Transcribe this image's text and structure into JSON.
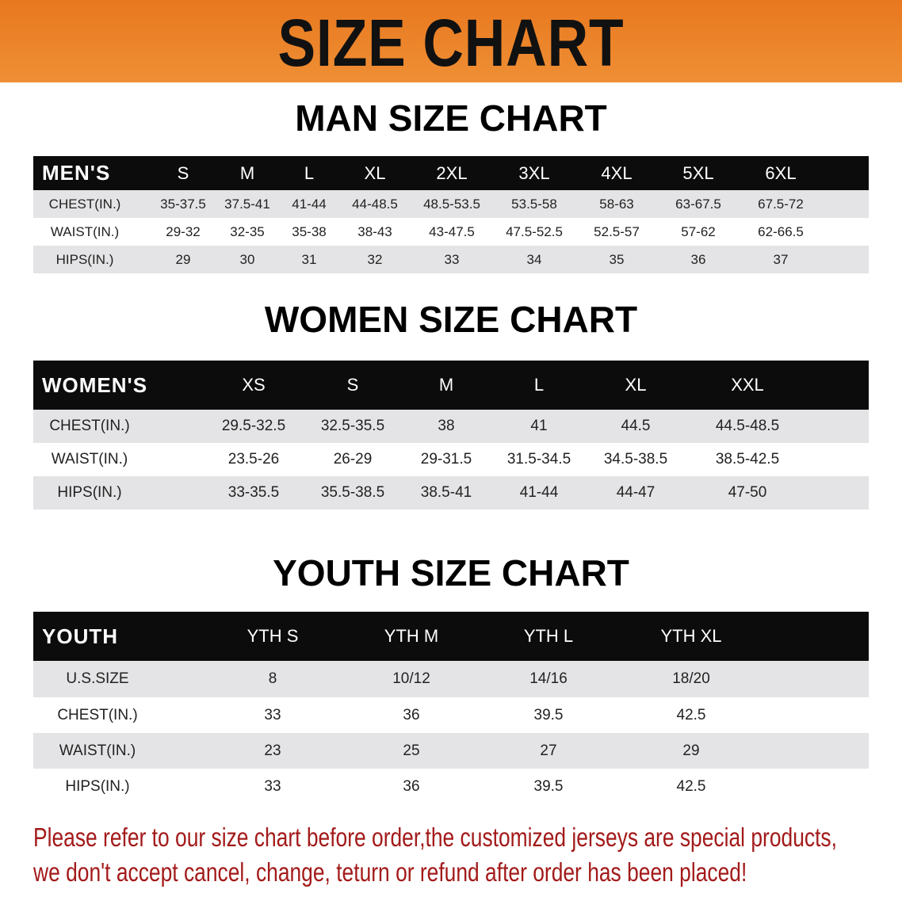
{
  "banner": {
    "title": "SIZE CHART"
  },
  "men": {
    "title": "MAN SIZE CHART",
    "header": [
      "MEN'S",
      "S",
      "M",
      "L",
      "XL",
      "2XL",
      "3XL",
      "4XL",
      "5XL",
      "6XL"
    ],
    "rows": [
      [
        "CHEST(IN.)",
        "35-37.5",
        "37.5-41",
        "41-44",
        "44-48.5",
        "48.5-53.5",
        "53.5-58",
        "58-63",
        "63-67.5",
        "67.5-72"
      ],
      [
        "WAIST(IN.)",
        "29-32",
        "32-35",
        "35-38",
        "38-43",
        "43-47.5",
        "47.5-52.5",
        "52.5-57",
        "57-62",
        "62-66.5"
      ],
      [
        "HIPS(IN.)",
        "29",
        "30",
        "31",
        "32",
        "33",
        "34",
        "35",
        "36",
        "37"
      ]
    ]
  },
  "women": {
    "title": "WOMEN SIZE CHART",
    "header": [
      "WOMEN'S",
      "XS",
      "S",
      "M",
      "L",
      "XL",
      "XXL"
    ],
    "rows": [
      [
        "CHEST(IN.)",
        "29.5-32.5",
        "32.5-35.5",
        "38",
        "41",
        "44.5",
        "44.5-48.5"
      ],
      [
        "WAIST(IN.)",
        "23.5-26",
        "26-29",
        "29-31.5",
        "31.5-34.5",
        "34.5-38.5",
        "38.5-42.5"
      ],
      [
        "HIPS(IN.)",
        "33-35.5",
        "35.5-38.5",
        "38.5-41",
        "41-44",
        "44-47",
        "47-50"
      ]
    ]
  },
  "youth": {
    "title": "YOUTH SIZE CHART",
    "header": [
      "YOUTH",
      "YTH S",
      "YTH M",
      "YTH L",
      "YTH XL"
    ],
    "rows": [
      [
        "U.S.SIZE",
        "8",
        "10/12",
        "14/16",
        "18/20"
      ],
      [
        "CHEST(IN.)",
        "33",
        "36",
        "39.5",
        "42.5"
      ],
      [
        "WAIST(IN.)",
        "23",
        "25",
        "27",
        "29"
      ],
      [
        "HIPS(IN.)",
        "33",
        "36",
        "39.5",
        "42.5"
      ]
    ]
  },
  "note": {
    "line1": "Please refer to our size chart before order,the customized jerseys are special products,",
    "line2": "we don't accept cancel, change, teturn or refund after order has been placed!"
  },
  "colors": {
    "banner": "#ec8228",
    "header": "#0c0c0c",
    "stripe": "#e4e4e6",
    "note": "#a31a1a"
  }
}
